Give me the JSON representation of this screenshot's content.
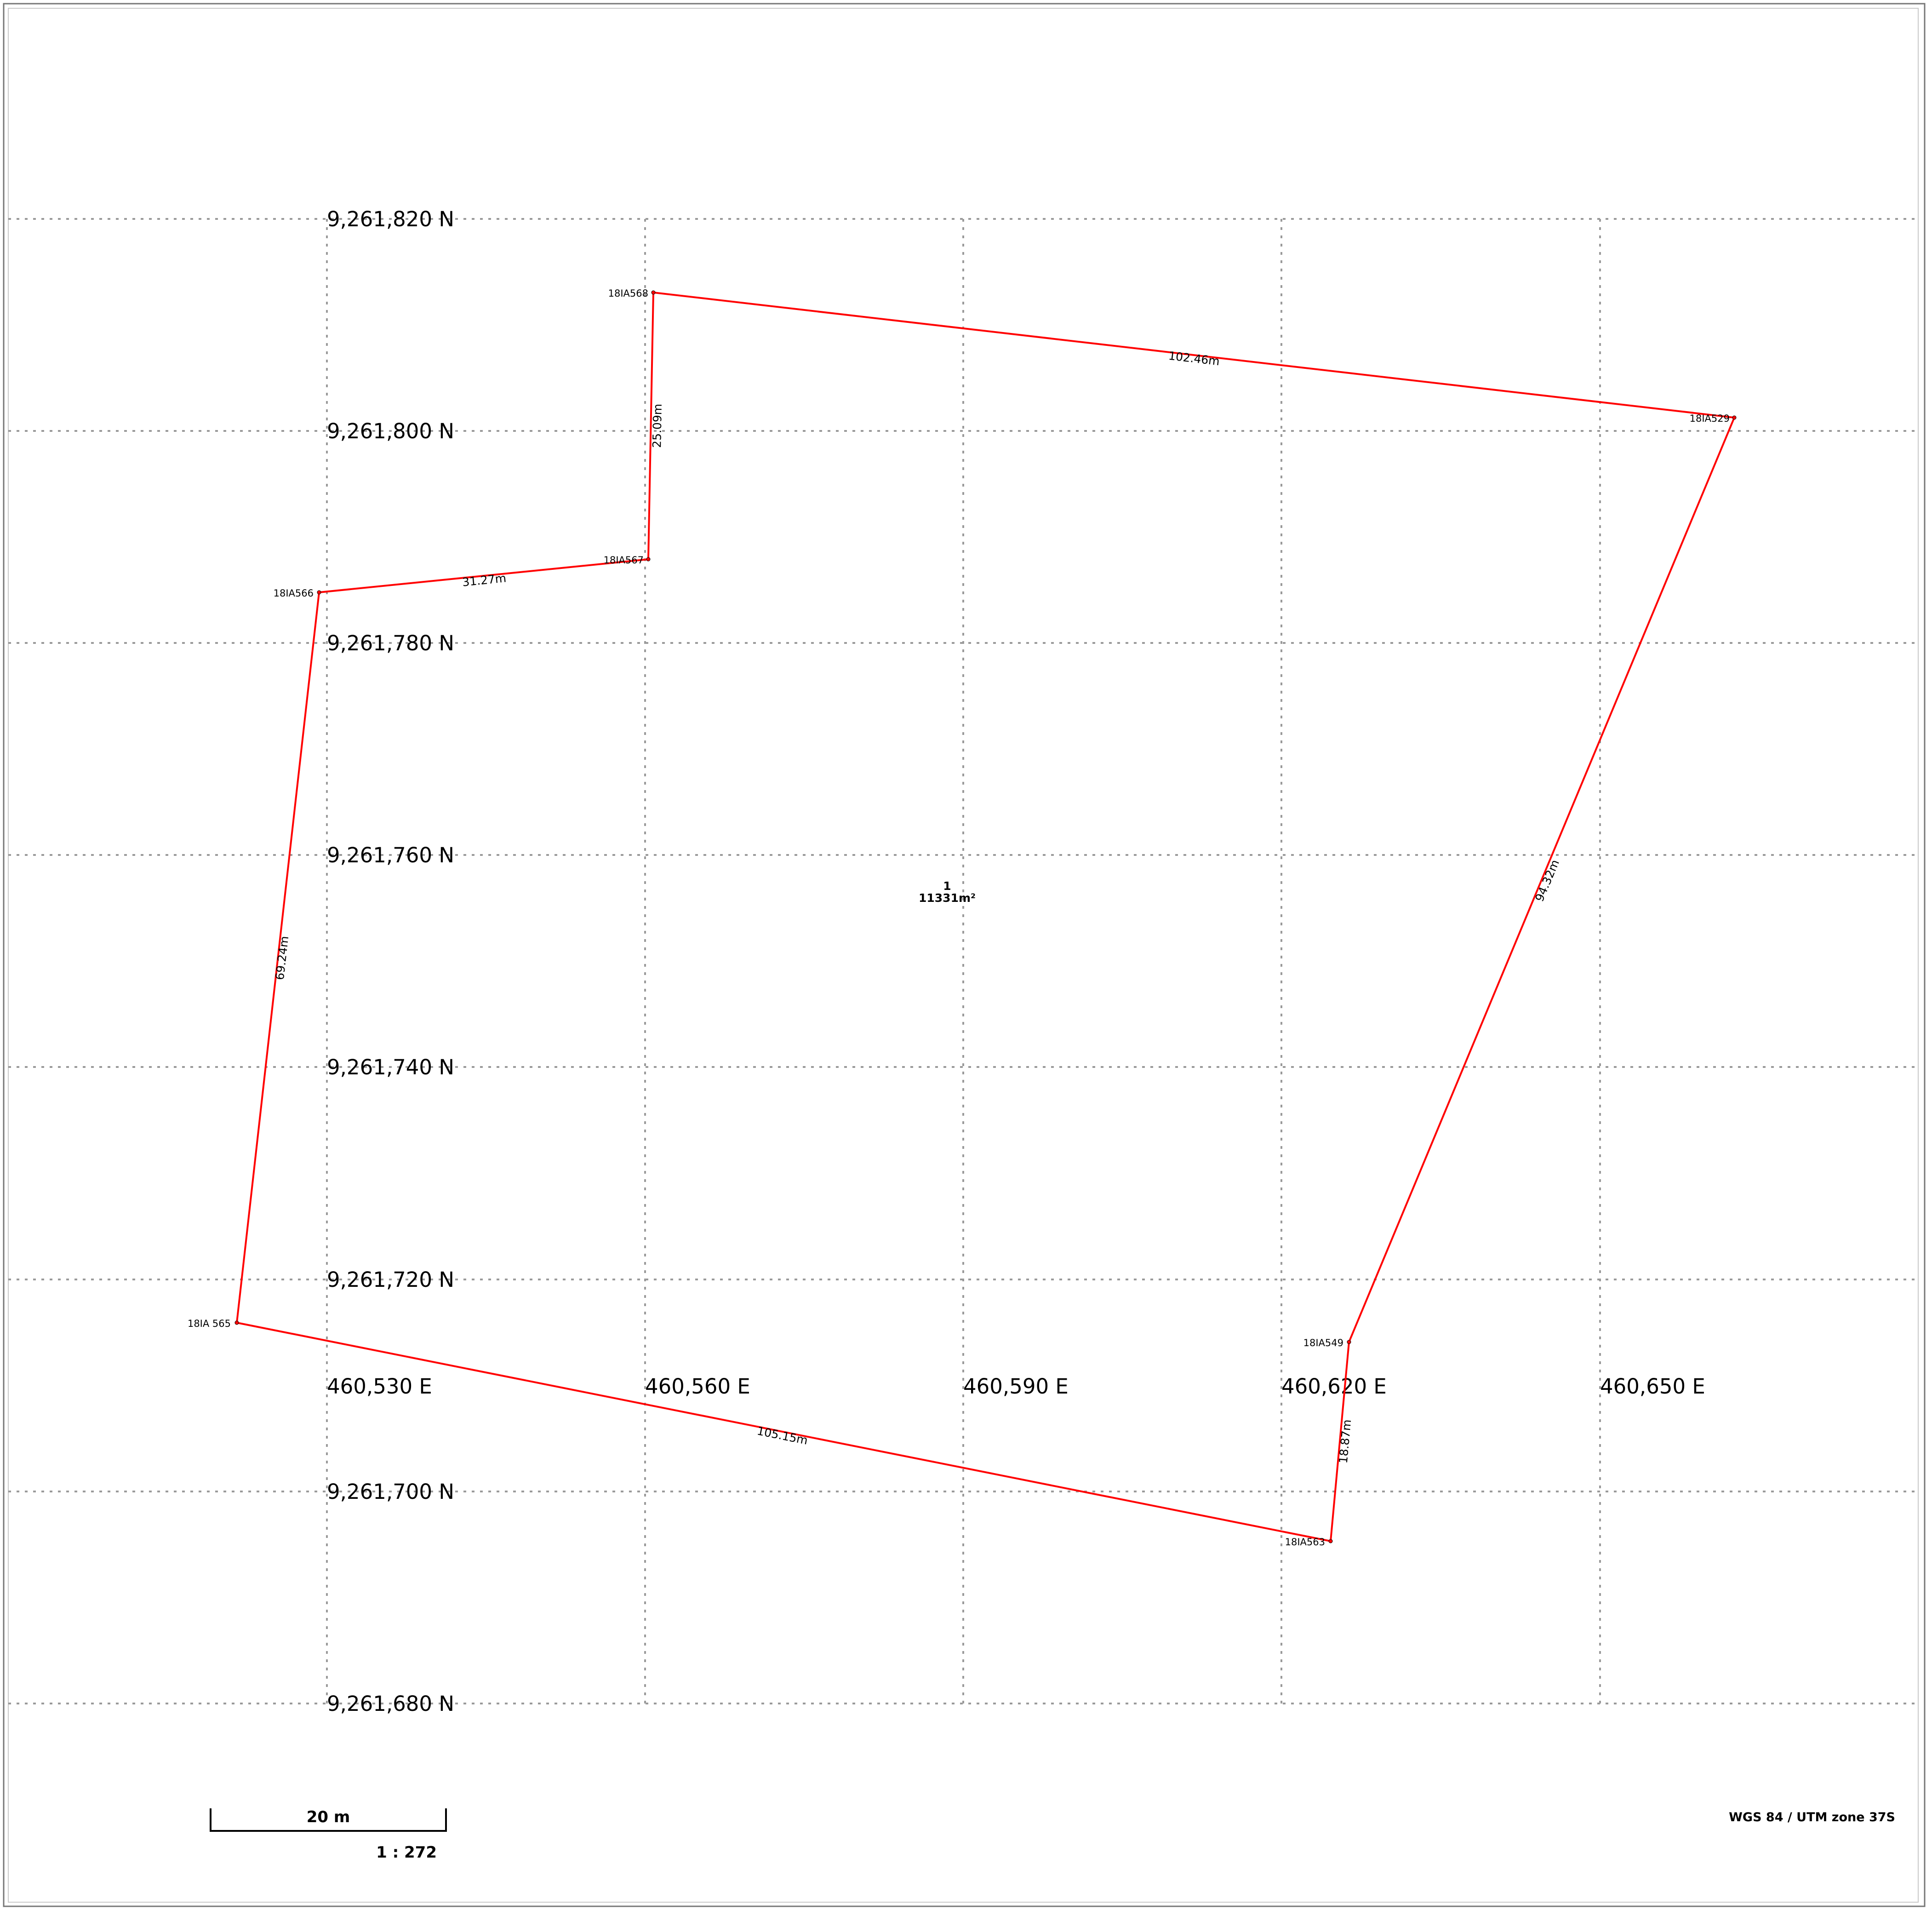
{
  "map": {
    "background": "#ffffff",
    "grid_color": "#9a9a9a",
    "parcel_color": "#ff0000",
    "northing_labels": [
      "9,261,820 N",
      "9,261,800 N",
      "9,261,780 N",
      "9,261,760 N",
      "9,261,740 N",
      "9,261,720 N",
      "9,261,700 N",
      "9,261,680 N"
    ],
    "easting_labels": [
      "460,530 E",
      "460,560 E",
      "460,590 E",
      "460,620 E",
      "460,650 E"
    ],
    "parcel": {
      "id": "1",
      "area": "11331m²",
      "vertices": [
        {
          "id": "v568",
          "label": "18IA568"
        },
        {
          "id": "v529",
          "label": "18IA529"
        },
        {
          "id": "v549",
          "label": "18IA549"
        },
        {
          "id": "v563",
          "label": "18IA563"
        },
        {
          "id": "v565",
          "label": "18IA 565"
        },
        {
          "id": "v566",
          "label": "18IA566"
        },
        {
          "id": "v567",
          "label": "18IA567"
        }
      ],
      "edges": [
        {
          "label": "102.46m"
        },
        {
          "label": "94.32m"
        },
        {
          "label": "18.87m"
        },
        {
          "label": "105.15m"
        },
        {
          "label": "69.24m"
        },
        {
          "label": "31.27m"
        },
        {
          "label": "25.09m"
        }
      ]
    },
    "scale_bar": {
      "label": "20 m",
      "ratio": "1 : 272"
    },
    "crs": "WGS 84 / UTM zone 37S"
  }
}
